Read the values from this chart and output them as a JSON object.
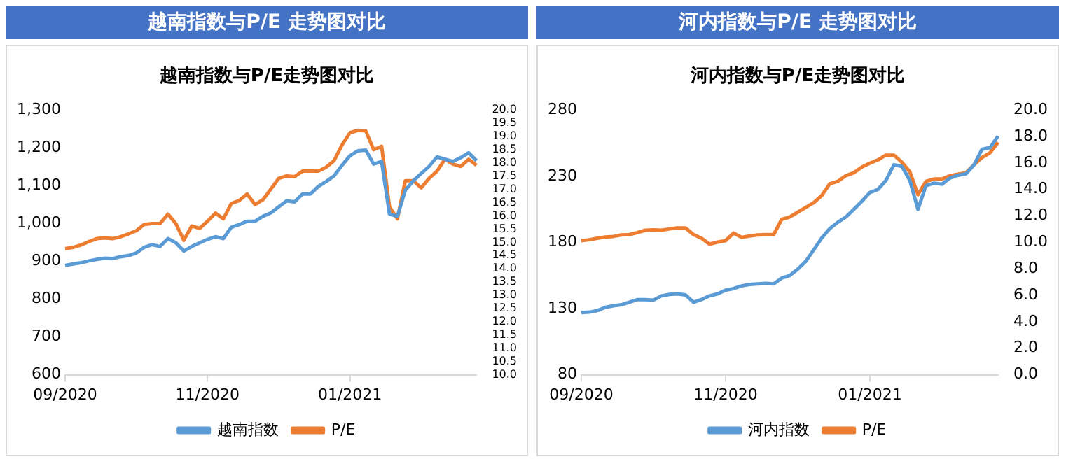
{
  "chart_data": [
    {
      "type": "line",
      "title": "越南指数与P/E 走势图对比",
      "subtitle": "越南指数与P/E走势图对比",
      "legend": "bottom",
      "grid": false,
      "marker": "none",
      "categories": [
        "09/2020",
        null,
        null,
        null,
        null,
        null,
        null,
        null,
        null,
        null,
        null,
        null,
        null,
        null,
        null,
        null,
        null,
        null,
        "11/2020",
        null,
        null,
        null,
        null,
        null,
        null,
        null,
        null,
        null,
        null,
        null,
        null,
        null,
        null,
        null,
        null,
        null,
        "01/2021",
        null,
        null,
        null,
        null,
        null,
        null,
        null,
        null,
        null,
        null,
        null,
        null,
        null,
        null,
        null,
        null
      ],
      "ylim": [
        600,
        1300
      ],
      "yticks": [
        {
          "value": 600,
          "label": "600"
        },
        {
          "value": 700,
          "label": "700"
        },
        {
          "value": 800,
          "label": "800"
        },
        {
          "value": 900,
          "label": "900"
        },
        {
          "value": 1000,
          "label": "1,000"
        },
        {
          "value": 1100,
          "label": "1,100"
        },
        {
          "value": 1200,
          "label": "1,200"
        },
        {
          "value": 1300,
          "label": "1,300"
        }
      ],
      "y2lim": [
        10,
        20
      ],
      "y2ticks": [
        {
          "value": 10,
          "label": "10.0"
        },
        {
          "value": 10.5,
          "label": "10.5"
        },
        {
          "value": 11,
          "label": "11.0"
        },
        {
          "value": 11.5,
          "label": "11.5"
        },
        {
          "value": 12,
          "label": "12.0"
        },
        {
          "value": 12.5,
          "label": "12.5"
        },
        {
          "value": 13,
          "label": "13.0"
        },
        {
          "value": 13.5,
          "label": "13.5"
        },
        {
          "value": 14,
          "label": "14.0"
        },
        {
          "value": 14.5,
          "label": "14.5"
        },
        {
          "value": 15,
          "label": "15.0"
        },
        {
          "value": 15.5,
          "label": "15.5"
        },
        {
          "value": 16,
          "label": "16.0"
        },
        {
          "value": 16.5,
          "label": "16.5"
        },
        {
          "value": 17,
          "label": "17.0"
        },
        {
          "value": 17.5,
          "label": "17.5"
        },
        {
          "value": 18,
          "label": "18.0"
        },
        {
          "value": 18.5,
          "label": "18.5"
        },
        {
          "value": 19,
          "label": "19.0"
        },
        {
          "value": 19.5,
          "label": "19.5"
        },
        {
          "value": 20,
          "label": "20.0"
        }
      ],
      "series": [
        {
          "name": "越南指数",
          "color": "#5b9bd5",
          "values": [
            889,
            893,
            896,
            901,
            905,
            908,
            907,
            912,
            915,
            922,
            937,
            944,
            939,
            960,
            949,
            927,
            939,
            949,
            958,
            965,
            960,
            990,
            997,
            1006,
            1006,
            1019,
            1028,
            1044,
            1060,
            1057,
            1078,
            1078,
            1098,
            1111,
            1126,
            1154,
            1179,
            1192,
            1194,
            1157,
            1164,
            1025,
            1019,
            1088,
            1113,
            1132,
            1151,
            1176,
            1170,
            1164,
            1174,
            1187,
            1166
          ]
        },
        {
          "name": "P/E",
          "color": "#ed7d31",
          "axis": "y2",
          "values": [
            14.76,
            14.81,
            14.9,
            15.03,
            15.14,
            15.17,
            15.14,
            15.21,
            15.32,
            15.44,
            15.68,
            15.71,
            15.71,
            16.07,
            15.71,
            15.08,
            15.62,
            15.53,
            15.8,
            16.11,
            15.89,
            16.47,
            16.58,
            16.83,
            16.43,
            16.61,
            17.01,
            17.42,
            17.51,
            17.48,
            17.69,
            17.69,
            17.69,
            17.84,
            18.09,
            18.68,
            19.14,
            19.23,
            19.21,
            18.5,
            18.63,
            16.34,
            15.89,
            17.33,
            17.33,
            17.06,
            17.42,
            17.69,
            18.14,
            17.96,
            17.87,
            18.14,
            17.91
          ]
        }
      ]
    },
    {
      "type": "line",
      "title": "河内指数与P/E 走势图对比",
      "subtitle": "河内指数与P/E走势图对比",
      "legend": "bottom",
      "grid": false,
      "marker": "none",
      "categories": [
        "09/2020",
        null,
        null,
        null,
        null,
        null,
        null,
        null,
        null,
        null,
        null,
        null,
        null,
        null,
        null,
        null,
        null,
        null,
        "11/2020",
        null,
        null,
        null,
        null,
        null,
        null,
        null,
        null,
        null,
        null,
        null,
        null,
        null,
        null,
        null,
        null,
        null,
        "01/2021",
        null,
        null,
        null,
        null,
        null,
        null,
        null,
        null,
        null,
        null,
        null,
        null,
        null,
        null,
        null,
        null
      ],
      "ylim": [
        80,
        280
      ],
      "yticks": [
        80,
        130,
        180,
        230,
        280
      ],
      "y2lim": [
        0,
        20
      ],
      "y2ticks": [
        {
          "value": 0,
          "label": "0.0"
        },
        {
          "value": 2,
          "label": "2.0"
        },
        {
          "value": 4,
          "label": "4.0"
        },
        {
          "value": 6,
          "label": "6.0"
        },
        {
          "value": 8,
          "label": "8.0"
        },
        {
          "value": 10,
          "label": "10.0"
        },
        {
          "value": 12,
          "label": "12.0"
        },
        {
          "value": 14,
          "label": "14.0"
        },
        {
          "value": 16,
          "label": "16.0"
        },
        {
          "value": 18,
          "label": "18.0"
        },
        {
          "value": 20,
          "label": "20.0"
        }
      ],
      "series": [
        {
          "name": "河内指数",
          "color": "#5b9bd5",
          "values": [
            126.9,
            127.3,
            128.5,
            130.9,
            132.1,
            132.9,
            134.8,
            136.8,
            136.8,
            136.4,
            139.6,
            140.7,
            141.1,
            140.3,
            134.8,
            136.8,
            139.6,
            141.1,
            143.9,
            145.1,
            147.1,
            148.2,
            148.6,
            149,
            148.6,
            153,
            154.9,
            159.7,
            165.6,
            174.3,
            183.3,
            190.4,
            195.2,
            199.1,
            205,
            211,
            217.7,
            220,
            226.7,
            238.6,
            237.4,
            226.7,
            205,
            222.8,
            224.8,
            224,
            228.7,
            230.7,
            231.9,
            238.6,
            250.4,
            251.6,
            260.3
          ]
        },
        {
          "name": "P/E",
          "color": "#ed7d31",
          "axis": "y2",
          "values": [
            10.13,
            10.2,
            10.31,
            10.41,
            10.45,
            10.56,
            10.59,
            10.74,
            10.92,
            10.95,
            10.92,
            11.02,
            11.09,
            11.09,
            10.59,
            10.31,
            9.87,
            10.02,
            10.13,
            10.7,
            10.38,
            10.48,
            10.56,
            10.59,
            10.59,
            11.74,
            11.92,
            12.28,
            12.64,
            13,
            13.54,
            14.43,
            14.61,
            15.04,
            15.26,
            15.69,
            15.98,
            16.23,
            16.59,
            16.59,
            16.05,
            15.33,
            13.6,
            14.61,
            14.79,
            14.79,
            15.04,
            15.15,
            15.26,
            15.87,
            16.41,
            16.77,
            17.56
          ]
        }
      ]
    }
  ]
}
